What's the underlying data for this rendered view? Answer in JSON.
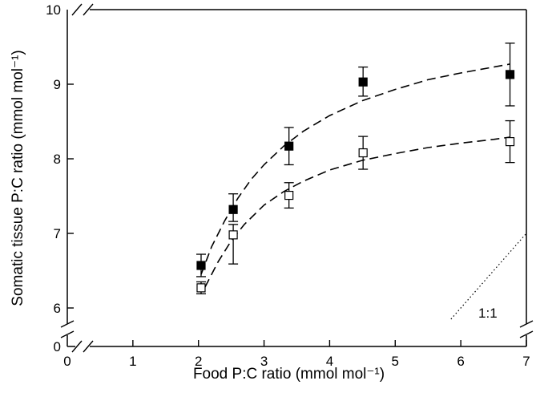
{
  "chart_data": {
    "type": "scatter",
    "xlabel": "Food P:C ratio (mmol mol⁻¹)",
    "ylabel": "Somatic tissue P:C ratio (mmol mol⁻¹)",
    "x_axis_break": true,
    "y_axis_break": true,
    "xlim": [
      0,
      7
    ],
    "xticks": [
      0,
      1,
      2,
      3,
      4,
      5,
      6,
      7
    ],
    "ylim_upper": [
      5.8,
      10
    ],
    "yticks_upper": [
      6,
      7,
      8,
      9,
      10
    ],
    "ytick_lower": 0,
    "grid": false,
    "series": [
      {
        "marker": "filled-square",
        "color": "#000000",
        "points": [
          {
            "x": 2.04,
            "y": 6.57,
            "err_low": 0.15,
            "err_high": 0.15
          },
          {
            "x": 2.53,
            "y": 7.32,
            "err_low": 0.16,
            "err_high": 0.21
          },
          {
            "x": 3.38,
            "y": 8.17,
            "err_low": 0.25,
            "err_high": 0.25
          },
          {
            "x": 4.51,
            "y": 9.03,
            "err_low": 0.19,
            "err_high": 0.2
          },
          {
            "x": 6.75,
            "y": 9.13,
            "err_low": 0.42,
            "err_high": 0.42
          }
        ],
        "fit_curve": [
          [
            2.04,
            6.45
          ],
          [
            2.2,
            6.82
          ],
          [
            2.4,
            7.17
          ],
          [
            2.6,
            7.47
          ],
          [
            2.8,
            7.72
          ],
          [
            3.0,
            7.92
          ],
          [
            3.3,
            8.17
          ],
          [
            3.6,
            8.37
          ],
          [
            4.0,
            8.58
          ],
          [
            4.5,
            8.78
          ],
          [
            5.0,
            8.93
          ],
          [
            5.5,
            9.06
          ],
          [
            6.0,
            9.15
          ],
          [
            6.5,
            9.23
          ],
          [
            6.75,
            9.27
          ]
        ]
      },
      {
        "marker": "open-square",
        "color": "#000000",
        "points": [
          {
            "x": 2.04,
            "y": 6.27,
            "err_low": 0.08,
            "err_high": 0.08
          },
          {
            "x": 2.53,
            "y": 6.98,
            "err_low": 0.39,
            "err_high": 0.14
          },
          {
            "x": 3.38,
            "y": 7.51,
            "err_low": 0.17,
            "err_high": 0.17
          },
          {
            "x": 4.51,
            "y": 8.08,
            "err_low": 0.22,
            "err_high": 0.22
          },
          {
            "x": 6.75,
            "y": 8.23,
            "err_low": 0.28,
            "err_high": 0.28
          }
        ],
        "fit_curve": [
          [
            2.1,
            6.28
          ],
          [
            2.3,
            6.62
          ],
          [
            2.5,
            6.9
          ],
          [
            2.7,
            7.12
          ],
          [
            3.0,
            7.38
          ],
          [
            3.3,
            7.56
          ],
          [
            3.6,
            7.7
          ],
          [
            4.0,
            7.85
          ],
          [
            4.5,
            7.98
          ],
          [
            5.0,
            8.07
          ],
          [
            5.5,
            8.15
          ],
          [
            6.0,
            8.21
          ],
          [
            6.5,
            8.26
          ],
          [
            6.75,
            8.29
          ]
        ]
      }
    ],
    "reference_line": {
      "label": "1:1",
      "points": [
        [
          5.85,
          5.85
        ],
        [
          7,
          7
        ]
      ]
    }
  }
}
